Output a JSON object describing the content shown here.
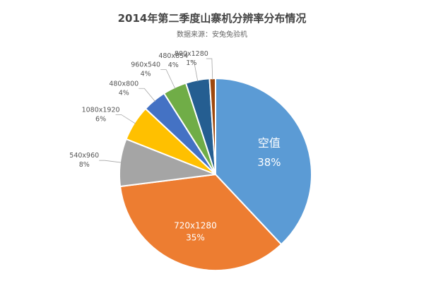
{
  "chart_data": {
    "type": "pie",
    "title": "2014年第二季度山寨机分辨率分布情况",
    "subtitle": "数据来源：安兔兔验机",
    "slices": [
      {
        "label": "空值",
        "value": 38,
        "value_label": "38%",
        "color": "#5B9BD5"
      },
      {
        "label": "720x1280",
        "value": 35,
        "value_label": "35%",
        "color": "#ED7D31"
      },
      {
        "label": "540x960",
        "value": 8,
        "value_label": "8%",
        "color": "#A5A5A5"
      },
      {
        "label": "1080x1920",
        "value": 6,
        "value_label": "6%",
        "color": "#FFC000"
      },
      {
        "label": "480x800",
        "value": 4,
        "value_label": "4%",
        "color": "#4472C4"
      },
      {
        "label": "960x540",
        "value": 4,
        "value_label": "4%",
        "color": "#70AD47"
      },
      {
        "label": "480x854",
        "value": 4,
        "value_label": "4%",
        "color": "#255E91"
      },
      {
        "label": "800x1280",
        "value": 1,
        "value_label": "1%",
        "color": "#9E480E"
      }
    ]
  }
}
